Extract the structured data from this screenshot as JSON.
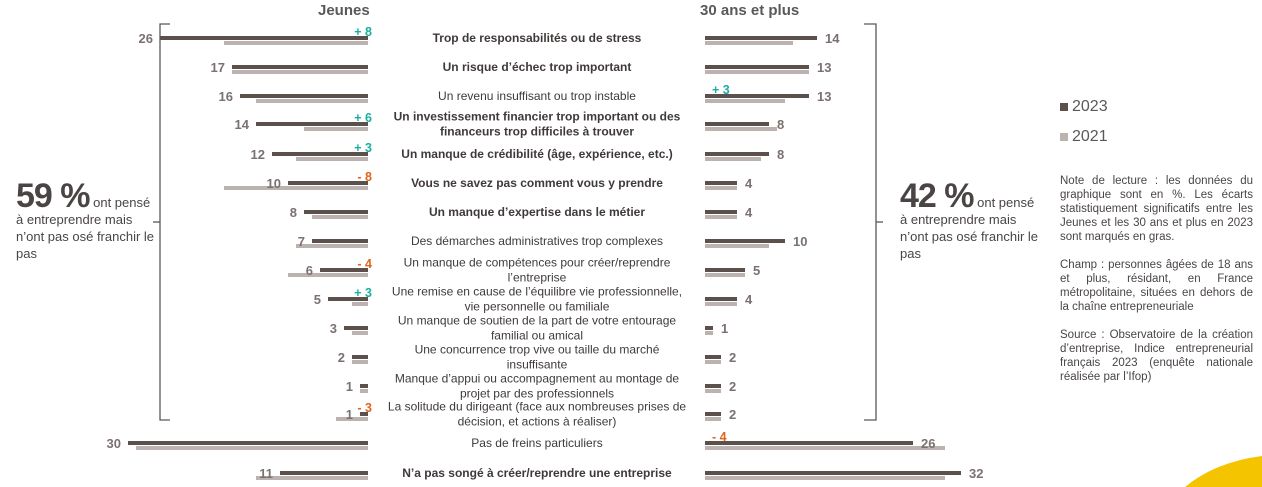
{
  "headers": {
    "left": "Jeunes",
    "right": "30 ans et plus"
  },
  "summary_left": {
    "pct": "59 %",
    "text_inline": "ont pensé",
    "text_rest": "à entreprendre mais n’ont pas osé franchir le pas"
  },
  "summary_right": {
    "pct": "42 %",
    "text_inline": "ont pensé",
    "text_rest": "à entreprendre mais n’ont pas osé franchir le pas"
  },
  "legend": [
    {
      "label": "2023",
      "color": "#5b504c"
    },
    {
      "label": "2021",
      "color": "#bcb3b0"
    }
  ],
  "note_lecture": "Note de lecture : les données du graphique sont en %. Les écarts statistiquement significatifs entre les Jeunes et les 30 ans et plus en 2023 sont marqués en gras.",
  "champ": "Champ : personnes âgées de 18 ans et plus, résidant, en France métropolitaine, situées en dehors de la chaîne entrepreneuriale",
  "source": "Source : Observatoire de la création d’entreprise, Indice entrepreneurial français 2023 (enquête nationale réalisée par l’Ifop)",
  "colors": {
    "bar2023": "#5b504c",
    "bar2021": "#bcb3b0",
    "positive": "#1aae9f",
    "negative": "#e0641c",
    "bracket": "#595959",
    "text": "#4a4544",
    "accent": "#f5c400"
  },
  "chart_data": {
    "type": "bar",
    "orientation": "horizontal-butterfly",
    "categories": [
      "Trop de responsabilités ou de stress",
      "Un risque d’échec trop important",
      "Un revenu insuffisant ou trop instable",
      "Un investissement financier trop important ou des financeurs trop difficiles à trouver",
      "Un manque de crédibilité (âge, expérience, etc.)",
      "Vous ne savez pas comment vous y prendre",
      "Un manque d’expertise dans le métier",
      "Des démarches administratives trop complexes",
      "Un manque de compétences pour créer/reprendre l’entreprise",
      "Une remise en cause de l’équilibre vie professionnelle, vie personnelle ou familiale",
      "Un manque de soutien de la part de votre entourage familial ou amical",
      "Une concurrence trop vive ou taille du marché insuffisante",
      "Manque d’appui ou accompagnement au montage de projet par des professionnels",
      "La solitude du dirigeant (face aux nombreuses prises de décision, et actions à réaliser)",
      "Pas de freins particuliers",
      "N’a pas songé à créer/reprendre une entreprise"
    ],
    "label_lines": [
      [
        "Trop de responsabilités ou de stress"
      ],
      [
        "Un risque d’échec trop important"
      ],
      [
        "Un revenu insuffisant ou trop instable"
      ],
      [
        "Un investissement financier trop important ou des",
        "financeurs trop difficiles à trouver"
      ],
      [
        "Un manque de crédibilité (âge, expérience, etc.)"
      ],
      [
        "Vous ne savez pas comment vous y prendre"
      ],
      [
        "Un manque d’expertise dans le métier"
      ],
      [
        "Des démarches administratives trop complexes"
      ],
      [
        "Un manque de compétences pour créer/reprendre",
        "l’entreprise"
      ],
      [
        "Une remise en cause de l’équilibre vie professionnelle,",
        "vie personnelle ou familiale"
      ],
      [
        "Un manque de soutien de la part de votre entourage",
        "familial ou amical"
      ],
      [
        "Une concurrence trop vive ou taille du marché",
        "insuffisante"
      ],
      [
        "Manque d’appui ou accompagnement au montage de",
        "projet par des professionnels"
      ],
      [
        "La solitude du dirigeant (face aux nombreuses prises de",
        "décision, et actions à réaliser)"
      ],
      [
        "Pas de freins particuliers"
      ],
      [
        "N’a pas songé à créer/reprendre une entreprise"
      ]
    ],
    "bold": [
      true,
      true,
      false,
      true,
      true,
      true,
      true,
      false,
      false,
      false,
      false,
      false,
      false,
      false,
      false,
      true
    ],
    "series": [
      {
        "name": "Jeunes 2023",
        "values": [
          26,
          17,
          16,
          14,
          12,
          10,
          8,
          7,
          6,
          5,
          3,
          2,
          1,
          1,
          30,
          11
        ]
      },
      {
        "name": "Jeunes 2021",
        "values": [
          18,
          17,
          14,
          8,
          9,
          18,
          7,
          9,
          10,
          2,
          2,
          2,
          1,
          4,
          29,
          14
        ]
      },
      {
        "name": "30 ans et plus 2023",
        "values": [
          14,
          13,
          13,
          8,
          8,
          4,
          4,
          10,
          5,
          4,
          1,
          2,
          2,
          2,
          26,
          32
        ]
      },
      {
        "name": "30 ans et plus 2021",
        "values": [
          11,
          13,
          10,
          9,
          7,
          4,
          4,
          8,
          5,
          4,
          1,
          2,
          2,
          2,
          30,
          30
        ]
      }
    ],
    "changes_jeunes": [
      "+ 8",
      "",
      "",
      "+ 6",
      "+ 3",
      "- 8",
      "",
      "",
      "- 4",
      "+ 3",
      "",
      "",
      "",
      "- 3",
      "",
      ""
    ],
    "changes_30plus": [
      "",
      "",
      "+ 3",
      "",
      "",
      "",
      "",
      "",
      "",
      "",
      "",
      "",
      "",
      "",
      "- 4",
      ""
    ],
    "unit": "%"
  }
}
